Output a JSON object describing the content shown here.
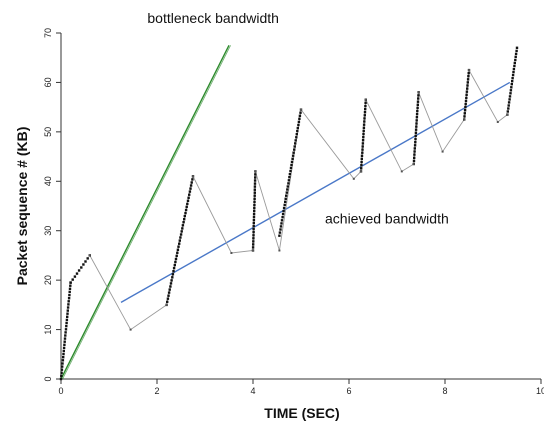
{
  "chart_data": {
    "type": "scatter",
    "xlabel": "TIME (SEC)",
    "ylabel": "Packet sequence # (KB)",
    "xlim": [
      0,
      10
    ],
    "ylim": [
      0,
      70
    ],
    "x_ticks": [
      0,
      2,
      4,
      6,
      8,
      10
    ],
    "y_ticks": [
      0,
      10,
      20,
      30,
      40,
      50,
      60,
      70
    ],
    "x_tick_labels": [
      "0",
      "2",
      "4",
      "6",
      "8",
      "10"
    ],
    "y_tick_labels": [
      "0",
      "10",
      "20",
      "30",
      "40",
      "50",
      "60",
      "70"
    ],
    "grid": false,
    "annotations": [
      {
        "text": "bottleneck bandwidth",
        "x": 1.8,
        "y": 72.0
      },
      {
        "text": "achieved bandwidth",
        "x": 5.5,
        "y": 31.5
      }
    ],
    "series": [
      {
        "kind": "reference-line",
        "label_ref": 0,
        "color": "#2e8b2e",
        "points": [
          [
            0.0,
            0.0
          ],
          [
            3.5,
            67.5
          ]
        ]
      },
      {
        "kind": "reference-line",
        "label_ref": 1,
        "color": "#4a78c8",
        "points": [
          [
            1.25,
            15.5
          ],
          [
            9.35,
            60.0
          ]
        ]
      },
      {
        "kind": "packet-trace",
        "color": "#111111",
        "connector_color": "#9a9a9a",
        "bursts": [
          {
            "x_start": 0.0,
            "x_end": 0.2,
            "y_start": 0.0,
            "y_end": 19.5
          },
          {
            "x_start": 0.2,
            "x_end": 0.6,
            "y_start": 19.5,
            "y_end": 25.0
          },
          {
            "x_start": 2.2,
            "x_end": 2.75,
            "y_start": 15.0,
            "y_end": 41.0
          },
          {
            "x_start": 4.0,
            "x_end": 4.05,
            "y_start": 26.0,
            "y_end": 42.0
          },
          {
            "x_start": 4.55,
            "x_end": 5.0,
            "y_start": 29.0,
            "y_end": 54.5
          },
          {
            "x_start": 6.25,
            "x_end": 6.35,
            "y_start": 42.0,
            "y_end": 56.5
          },
          {
            "x_start": 7.35,
            "x_end": 7.45,
            "y_start": 43.5,
            "y_end": 58.0
          },
          {
            "x_start": 8.4,
            "x_end": 8.5,
            "y_start": 52.5,
            "y_end": 62.5
          },
          {
            "x_start": 9.3,
            "x_end": 9.5,
            "y_start": 53.5,
            "y_end": 67.0
          }
        ],
        "idle_points": [
          [
            0.6,
            25.0
          ],
          [
            1.45,
            10.0
          ],
          [
            2.2,
            15.0
          ],
          [
            2.75,
            41.0
          ],
          [
            3.55,
            25.5
          ],
          [
            4.0,
            26.0
          ],
          [
            4.05,
            42.0
          ],
          [
            4.55,
            26.0
          ],
          [
            5.0,
            54.5
          ],
          [
            6.1,
            40.5
          ],
          [
            6.25,
            42.0
          ],
          [
            6.35,
            56.5
          ],
          [
            7.1,
            42.0
          ],
          [
            7.35,
            43.5
          ],
          [
            7.45,
            58.0
          ],
          [
            7.95,
            46.0
          ],
          [
            8.4,
            52.5
          ],
          [
            8.5,
            62.5
          ],
          [
            9.1,
            52.0
          ],
          [
            9.3,
            53.5
          ]
        ]
      }
    ]
  }
}
